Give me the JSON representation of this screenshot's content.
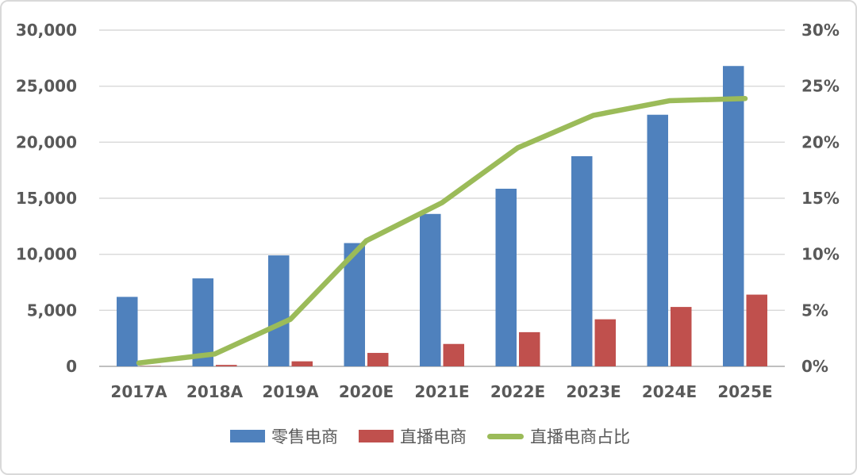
{
  "chart_data": {
    "type": "bar",
    "subtype": "combo-bar-line",
    "title": "",
    "xlabel": "",
    "ylabel_left": "",
    "ylabel_right": "",
    "grid": true,
    "legend_position": "bottom",
    "categories": [
      "2017A",
      "2018A",
      "2019A",
      "2020E",
      "2021E",
      "2022E",
      "2023E",
      "2024E",
      "2025E"
    ],
    "series": [
      {
        "name": "零售电商",
        "type": "bar",
        "axis": "left",
        "color": "#4F81BD",
        "values": [
          6200,
          7850,
          9900,
          11000,
          13600,
          15850,
          18750,
          22450,
          26800
        ]
      },
      {
        "name": "直播电商",
        "type": "bar",
        "axis": "left",
        "color": "#C0504D",
        "values": [
          25,
          130,
          450,
          1200,
          2000,
          3050,
          4200,
          5300,
          6400
        ]
      },
      {
        "name": "直播电商占比",
        "type": "line",
        "axis": "right",
        "color": "#9BBB59",
        "values": [
          0.3,
          1.1,
          4.2,
          11.2,
          14.6,
          19.5,
          22.4,
          23.7,
          23.9
        ]
      }
    ],
    "left_axis": {
      "min": 0,
      "max": 30000,
      "step": 5000,
      "tick_labels": [
        "0",
        "5,000",
        "10,000",
        "15,000",
        "20,000",
        "25,000",
        "30,000"
      ]
    },
    "right_axis": {
      "min": 0,
      "max": 30,
      "step": 5,
      "tick_labels": [
        "0%",
        "5%",
        "10%",
        "15%",
        "20%",
        "25%",
        "30%"
      ]
    }
  },
  "legend": {
    "items": [
      {
        "label": "零售电商",
        "marker": "rect",
        "color": "#4F81BD"
      },
      {
        "label": "直播电商",
        "marker": "rect",
        "color": "#C0504D"
      },
      {
        "label": "直播电商占比",
        "marker": "line",
        "color": "#9BBB59"
      }
    ]
  },
  "colors": {
    "bar_blue": "#4F81BD",
    "bar_red": "#C0504D",
    "line_green": "#9BBB59",
    "gridline": "#d9d9d9",
    "baseline": "#bfbfbf",
    "label_text": "#595959",
    "frame_border": "#d9d9d9",
    "background": "#ffffff"
  }
}
